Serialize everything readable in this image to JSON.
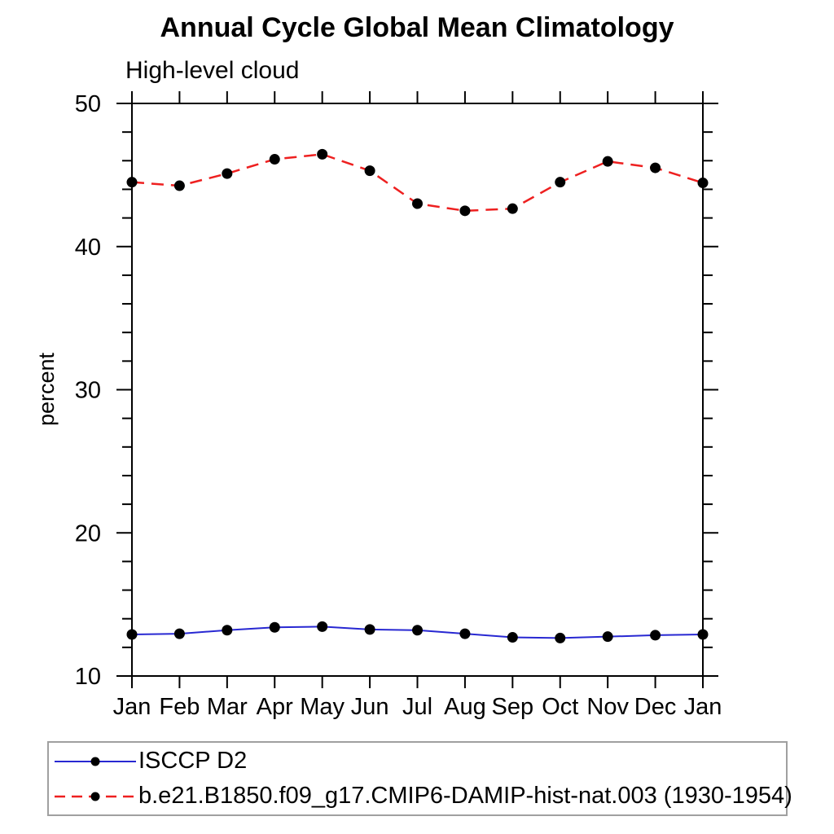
{
  "chart_data": {
    "type": "line",
    "title": "Annual Cycle Global Mean Climatology",
    "subtitle": "High-level cloud",
    "xlabel": "",
    "ylabel": "percent",
    "categories": [
      "Jan",
      "Feb",
      "Mar",
      "Apr",
      "May",
      "Jun",
      "Jul",
      "Aug",
      "Sep",
      "Oct",
      "Nov",
      "Dec",
      "Jan"
    ],
    "ylim": [
      10,
      50
    ],
    "yticks_major": [
      10,
      20,
      30,
      40,
      50
    ],
    "ytick_minor_step": 2,
    "grid": false,
    "legend_position": "bottom-left-box",
    "marker": {
      "shape": "filled-circle",
      "color": "#000000"
    },
    "series": [
      {
        "name": "ISCCP D2",
        "color": "#2828d2",
        "line_style": "solid",
        "values": [
          12.9,
          12.95,
          13.2,
          13.4,
          13.45,
          13.25,
          13.2,
          12.95,
          12.7,
          12.65,
          12.75,
          12.85,
          12.9
        ]
      },
      {
        "name": "b.e21.B1850.f09_g17.CMIP6-DAMIP-hist-nat.003 (1930-1954)",
        "color": "#ee2020",
        "line_style": "dashed",
        "values": [
          44.5,
          44.25,
          45.1,
          46.1,
          46.45,
          45.3,
          43.0,
          42.5,
          42.65,
          44.5,
          45.95,
          45.5,
          44.45
        ]
      }
    ]
  }
}
